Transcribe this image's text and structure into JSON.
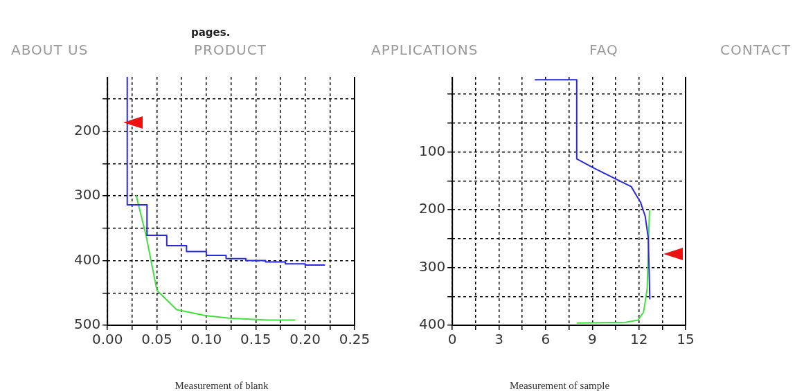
{
  "chart_data": [
    {
      "type": "other",
      "annotations": [
        "pages.",
        "ABOUT US",
        "PRODUCT",
        "APPLICATIONS",
        "FAQ",
        "CONTACT"
      ]
    },
    {
      "type": "line",
      "xlim": [
        0,
        0.25
      ],
      "xticks": [
        {
          "value": 0,
          "label": "0.00"
        },
        {
          "value": 0.025,
          "label": null
        },
        0.05,
        {
          "value": 0.075,
          "label": null
        },
        {
          "value": 0.1,
          "label": "0.10"
        },
        {
          "value": 0.125,
          "label": null
        },
        0.15,
        {
          "value": 0.175,
          "label": null
        },
        {
          "value": 0.2,
          "label": "0.20"
        },
        {
          "value": 0.225,
          "label": null
        },
        0.25
      ],
      "ylim": [
        500,
        116
      ],
      "yticks": [
        500,
        {
          "value": 450,
          "label": null
        },
        400,
        {
          "value": 350,
          "label": null
        },
        300,
        {
          "value": 250,
          "label": null
        },
        200,
        {
          "value": 150,
          "label": null
        }
      ],
      "grid": true,
      "marker": "none",
      "annotations": [
        "Measurement of blank"
      ],
      "series": [
        {
          "color": "#2a2ad8",
          "x": [
            0.02,
            0.02,
            0.04,
            0.04,
            0.06,
            0.06,
            0.08,
            0.08,
            0.1,
            0.1,
            0.12,
            0.12,
            0.14,
            0.14,
            0.16,
            0.16,
            0.18,
            0.18,
            0.2,
            0.2,
            0.22
          ],
          "values": [
            116,
            314,
            314,
            361,
            361,
            377,
            377,
            386,
            386,
            392,
            392,
            397,
            397,
            400,
            400,
            402,
            402,
            405,
            405,
            407,
            407
          ]
        },
        {
          "color": "#44dd44",
          "x": [
            0.029,
            0.039,
            0.05,
            0.07,
            0.099,
            0.123,
            0.162,
            0.19
          ],
          "values": [
            299,
            361,
            446,
            476,
            485,
            489,
            492,
            492
          ]
        }
      ]
    },
    {
      "type": "line",
      "xlim": [
        0,
        15
      ],
      "xticks": [
        0,
        {
          "value": 1.5,
          "label": null
        },
        3,
        {
          "value": 4.5,
          "label": null
        },
        6,
        {
          "value": 7.5,
          "label": null
        },
        9,
        {
          "value": 10.5,
          "label": null
        },
        12,
        {
          "value": 13.5,
          "label": null
        },
        15
      ],
      "ylim": [
        400,
        -30
      ],
      "yticks": [
        400,
        {
          "value": 350,
          "label": null
        },
        300,
        {
          "value": 250,
          "label": null
        },
        200,
        {
          "value": 150,
          "label": null
        },
        100,
        {
          "value": 50,
          "label": null
        },
        {
          "value": 0,
          "label": null
        }
      ],
      "grid": true,
      "marker": "none",
      "annotations": [
        "Measurement of sample"
      ],
      "series": [
        {
          "color": "#2a2ad8",
          "x": [
            5.3,
            8.0,
            8.0,
            9.1,
            10.6,
            11.5,
            12.1,
            12.4,
            12.6,
            12.65,
            12.7
          ],
          "values": [
            -25,
            -25,
            112,
            128,
            148,
            160,
            187,
            211,
            249,
            300,
            355
          ]
        },
        {
          "color": "#44dd44",
          "x": [
            12.68,
            12.6,
            12.53,
            12.3,
            11.94,
            11.15,
            8.0
          ],
          "values": [
            201,
            266,
            337,
            377,
            391,
            395,
            396
          ]
        }
      ]
    }
  ]
}
